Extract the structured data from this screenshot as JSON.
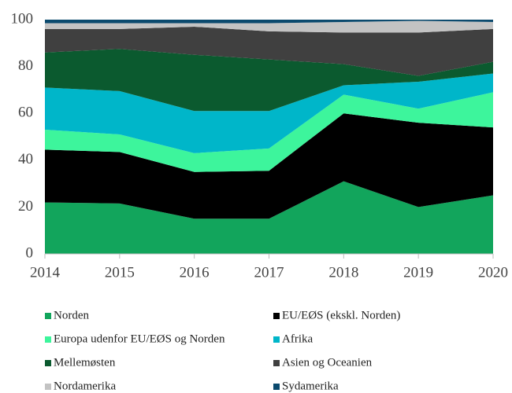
{
  "chart_data": {
    "type": "stacked_area",
    "x": [
      2014,
      2015,
      2016,
      2017,
      2018,
      2019,
      2020
    ],
    "xlim": [
      2014,
      2020
    ],
    "xticks": [
      2014,
      2015,
      2016,
      2017,
      2018,
      2019,
      2020
    ],
    "ylim": [
      0,
      100
    ],
    "yticks": [
      0,
      20,
      40,
      60,
      80,
      100
    ],
    "series": [
      {
        "name": "Norden",
        "color": "#12a55c",
        "values": [
          22,
          21.5,
          15,
          15,
          31,
          20,
          25
        ]
      },
      {
        "name": "EU/EØS (ekskl. Norden)",
        "color": "#000000",
        "values": [
          22.5,
          22,
          20,
          20.5,
          29,
          36,
          29
        ]
      },
      {
        "name": "Europa udenfor EU/EØS og Norden",
        "color": "#3df59c",
        "values": [
          8.5,
          7.5,
          8,
          9.5,
          8,
          6,
          15
        ]
      },
      {
        "name": "Afrika",
        "color": "#00b6c9",
        "values": [
          18,
          18.5,
          18,
          16,
          4,
          11.5,
          8
        ]
      },
      {
        "name": "Mellemøsten",
        "color": "#0b5a2f",
        "values": [
          15,
          18,
          24,
          22,
          9,
          2.5,
          5
        ]
      },
      {
        "name": "Asien og Oceanien",
        "color": "#404040",
        "values": [
          10,
          8.5,
          12,
          12,
          13.5,
          18.5,
          14
        ]
      },
      {
        "name": "Nordamerika",
        "color": "#c3c3c3",
        "values": [
          2.5,
          2.5,
          1.5,
          3.5,
          4.5,
          5,
          3
        ]
      },
      {
        "name": "Sydamerika",
        "color": "#0b4a6e",
        "values": [
          1.5,
          1.5,
          1.5,
          1.5,
          1,
          0.5,
          1
        ]
      }
    ]
  }
}
